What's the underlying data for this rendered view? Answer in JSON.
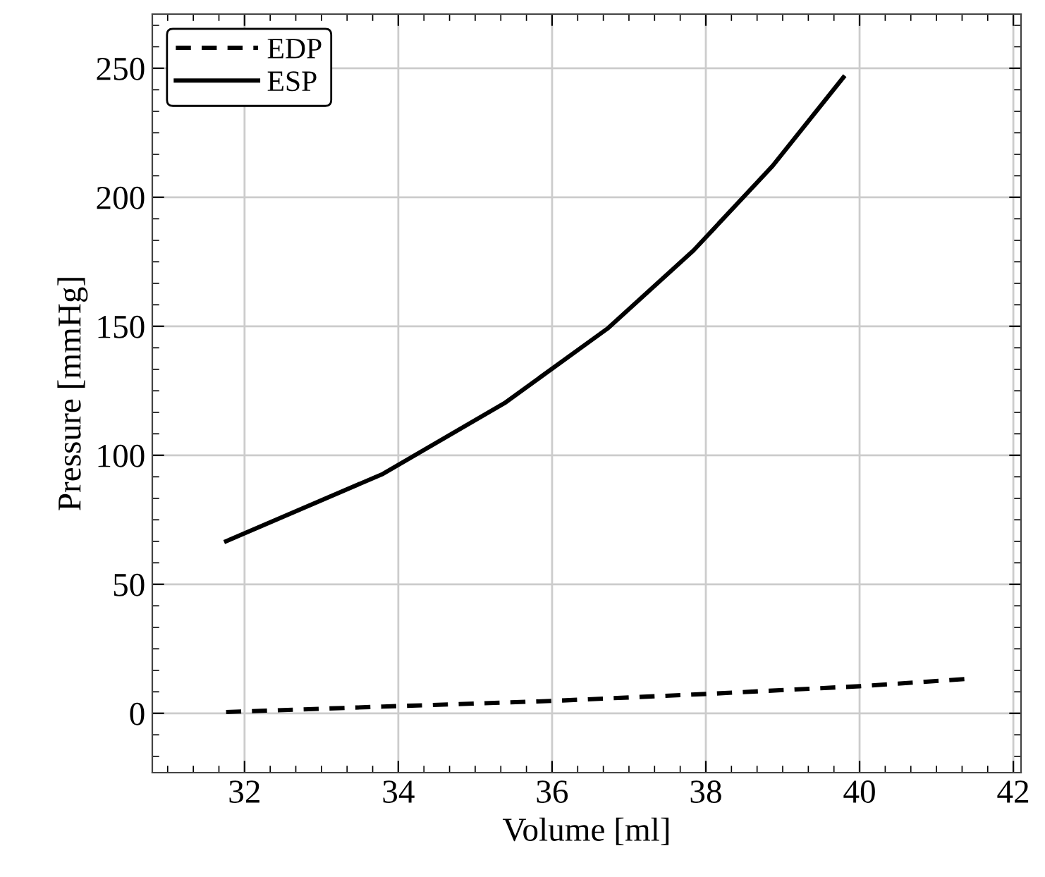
{
  "chart_data": {
    "type": "line",
    "xlabel": "Volume [ml]",
    "ylabel": "Pressure [mmHg]",
    "xlim": [
      30.8,
      42.1
    ],
    "ylim": [
      -23,
      271
    ],
    "xticks": [
      32,
      34,
      36,
      38,
      40,
      42
    ],
    "yticks": [
      0,
      50,
      100,
      150,
      200,
      250
    ],
    "grid": true,
    "legend": "top left",
    "series": [
      {
        "name": "EDP",
        "color": "#000000",
        "line_style": "dashed",
        "x": [
          31.76,
          33.8,
          36.0,
          38.0,
          40.0,
          41.43
        ],
        "values": [
          0.5,
          2.6,
          4.8,
          7.5,
          10.5,
          13.4
        ]
      },
      {
        "name": "ESP",
        "color": "#000000",
        "line_style": "solid",
        "x": [
          31.76,
          33.8,
          35.38,
          36.72,
          37.84,
          38.87,
          39.79
        ],
        "values": [
          66.7,
          92.8,
          120.2,
          149.1,
          179.4,
          212.2,
          246.5
        ]
      }
    ]
  }
}
